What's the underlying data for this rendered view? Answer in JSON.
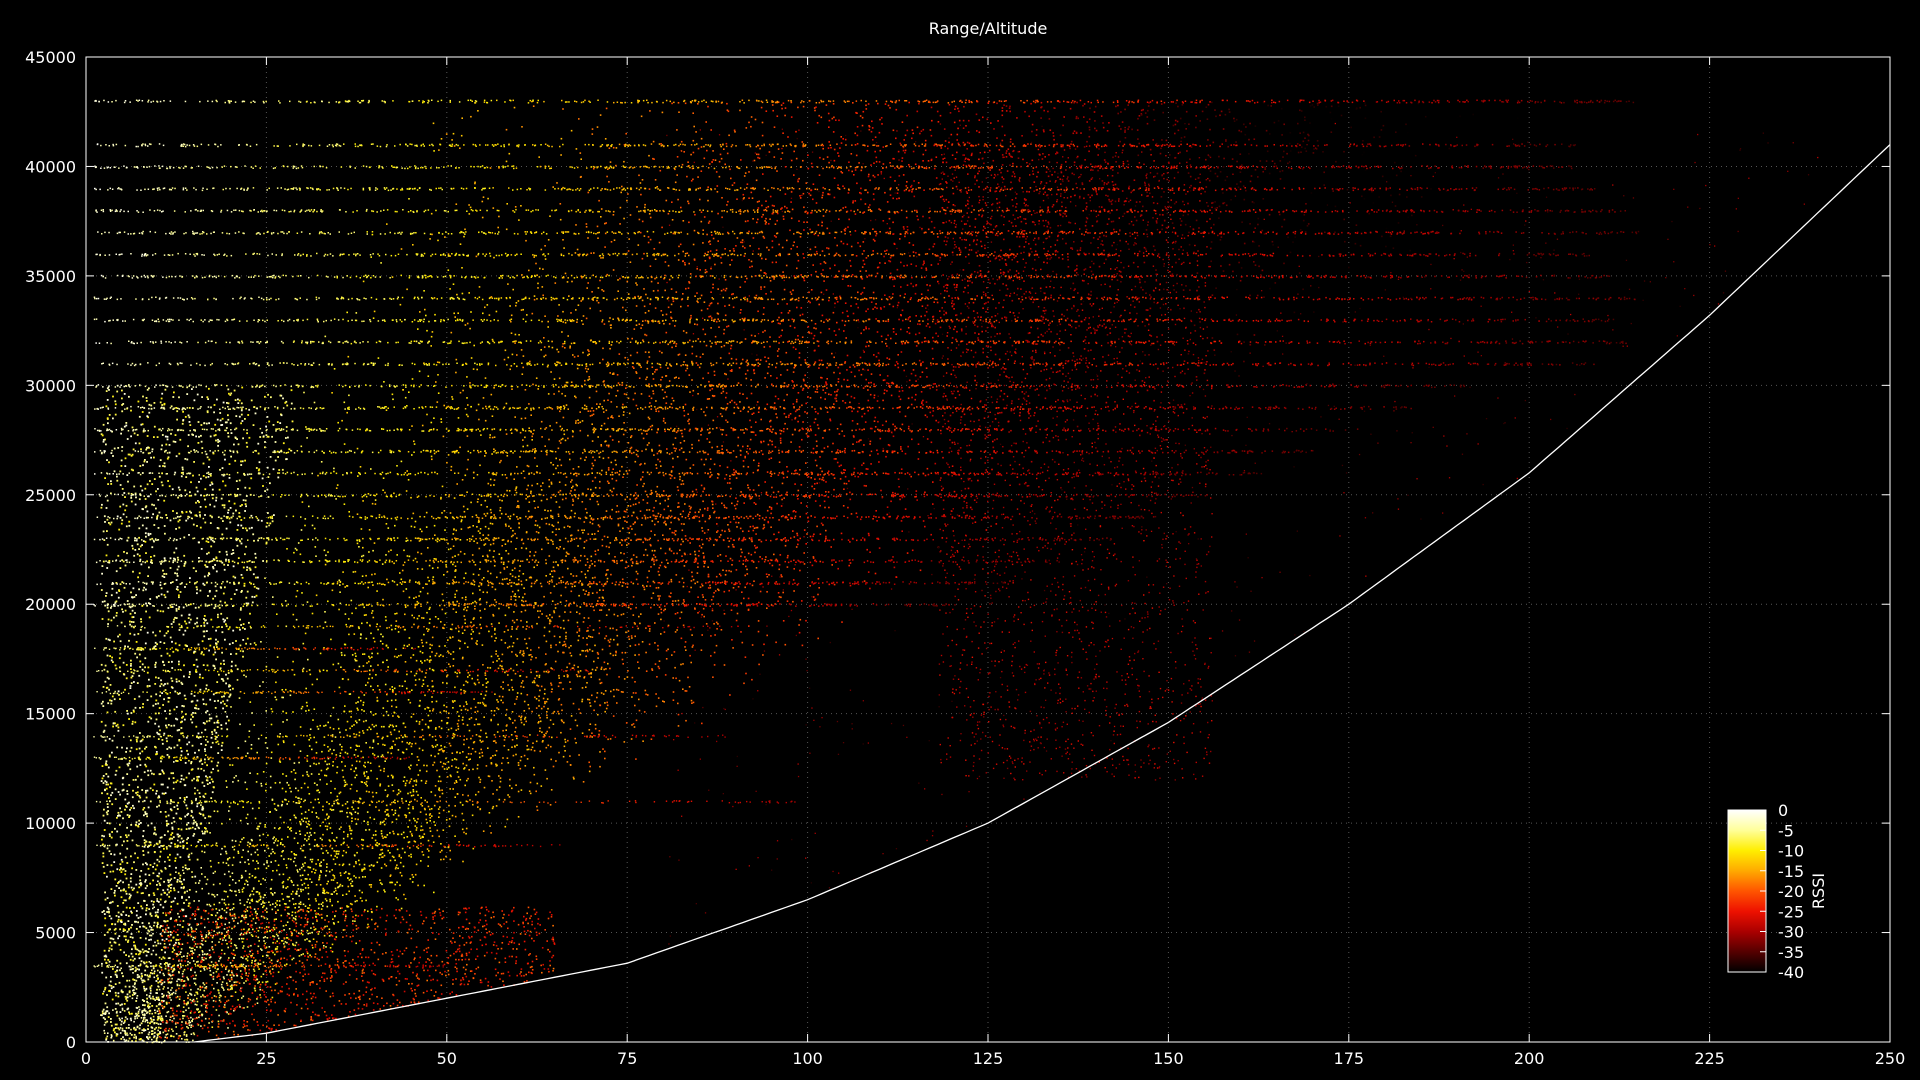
{
  "chart_data": {
    "type": "scatter",
    "title": "Range/Altitude",
    "xlabel": "",
    "ylabel": "",
    "xlim": [
      0,
      250
    ],
    "ylim": [
      0,
      45000
    ],
    "x_ticks": [
      0,
      25,
      50,
      75,
      100,
      125,
      150,
      175,
      200,
      225,
      250
    ],
    "y_ticks": [
      0,
      5000,
      10000,
      15000,
      20000,
      25000,
      30000,
      35000,
      40000,
      45000
    ],
    "grid": true,
    "colorbar": {
      "label": "RSSI",
      "range": [
        -40,
        0
      ],
      "ticks": [
        0,
        -5,
        -10,
        -15,
        -20,
        -25,
        -30,
        -35,
        -40
      ],
      "colors": [
        "#ffffff",
        "#ffff99",
        "#ffee00",
        "#ffaa00",
        "#ff5500",
        "#ee1100",
        "#aa0000",
        "#550000",
        "#000000"
      ],
      "placement": "bottom-right"
    },
    "flight_levels": [
      43000,
      41000,
      40000,
      39000,
      38000,
      37000,
      36000,
      35000,
      34000,
      33000,
      32000,
      31000,
      30000,
      29000,
      28000,
      27000,
      26000,
      25000,
      24000,
      23000,
      22000,
      21000,
      20000
    ],
    "horizon_curve": {
      "x": [
        15,
        25,
        50,
        75,
        100,
        125,
        150,
        175,
        200,
        225,
        250
      ],
      "y": [
        0,
        400,
        2000,
        3600,
        6500,
        10000,
        14600,
        20000,
        26000,
        33200,
        41000
      ]
    },
    "density_bands": [
      {
        "x_range": [
          2,
          30
        ],
        "y_range": [
          0,
          45000
        ],
        "rssi": [
          -2,
          -12
        ],
        "density": "high"
      },
      {
        "x_range": [
          20,
          90
        ],
        "y_range": [
          3000,
          40000
        ],
        "rssi": [
          -12,
          -20
        ],
        "density": "high"
      },
      {
        "x_range": [
          70,
          160
        ],
        "y_range": [
          10000,
          40000
        ],
        "rssi": [
          -20,
          -30
        ],
        "density": "medium"
      },
      {
        "x_range": [
          120,
          150
        ],
        "y_range": [
          15000,
          38000
        ],
        "rssi": [
          -25,
          -32
        ],
        "density": "medium"
      },
      {
        "x_range": [
          150,
          220
        ],
        "y_range": [
          0,
          43000
        ],
        "rssi": [
          -30,
          -38
        ],
        "density": "sparse"
      }
    ]
  }
}
